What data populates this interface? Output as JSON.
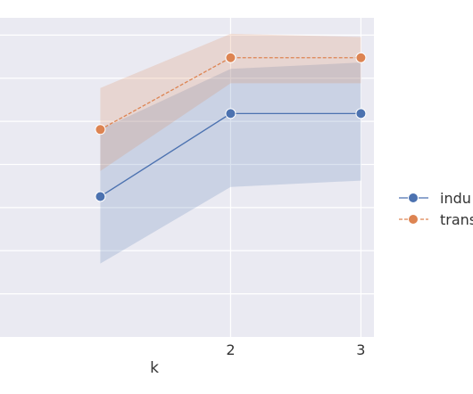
{
  "chart_data": {
    "type": "line",
    "title": "",
    "xlabel": "k",
    "ylabel": "",
    "xlim": [
      0.23,
      3.1
    ],
    "ylim": [
      0.0,
      1.0
    ],
    "xticks": [
      2,
      3
    ],
    "xtick_labels": [
      "2",
      "3"
    ],
    "grid": true,
    "legend_position": "right",
    "series": [
      {
        "name": "indu",
        "color": "#4C72B0",
        "line_style": "solid",
        "marker": "circle",
        "x": [
          1,
          2,
          3
        ],
        "y": [
          0.44,
          0.7,
          0.7
        ],
        "ci_lower": [
          0.23,
          0.47,
          0.49
        ],
        "ci_upper": [
          0.65,
          0.84,
          0.86
        ]
      },
      {
        "name": "trans",
        "color": "#DD8452",
        "line_style": "dashed",
        "marker": "circle",
        "x": [
          1,
          2,
          3
        ],
        "y": [
          0.65,
          0.875,
          0.875
        ],
        "ci_lower": [
          0.52,
          0.795,
          0.795
        ],
        "ci_upper": [
          0.78,
          0.95,
          0.94
        ]
      }
    ]
  }
}
